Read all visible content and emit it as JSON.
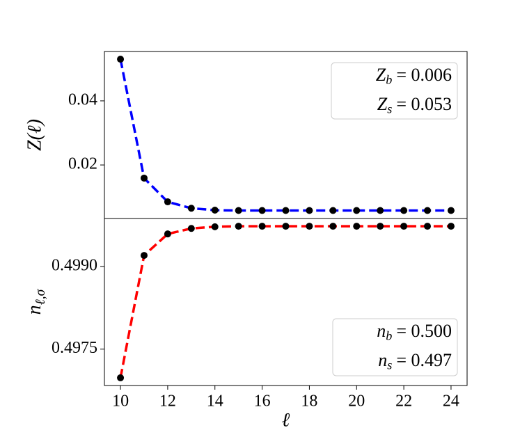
{
  "chart_data": [
    {
      "type": "line",
      "ylabel": "Z(ℓ)",
      "x": [
        10,
        11,
        12,
        13,
        14,
        15,
        16,
        17,
        18,
        19,
        20,
        21,
        22,
        23,
        24
      ],
      "series": [
        {
          "color": "#0000ff",
          "values": [
            0.053,
            0.0159,
            0.0085,
            0.0065,
            0.0059,
            0.0058,
            0.0058,
            0.0058,
            0.0058,
            0.0058,
            0.0058,
            0.0058,
            0.0058,
            0.0058,
            0.0058
          ]
        }
      ],
      "marker_color": "#000000",
      "xlim": [
        9.32,
        24.68
      ],
      "ylim": [
        0.0033,
        0.0554
      ],
      "yticks": [
        0.02,
        0.04
      ],
      "annotations": [
        {
          "symbol": "Z",
          "sub": "b",
          "rest": "= 0.006"
        },
        {
          "symbol": "Z",
          "sub": "s",
          "rest": "= 0.053"
        }
      ]
    },
    {
      "type": "line",
      "ylabel": {
        "symbol": "n",
        "sub": "ℓ,σ"
      },
      "xlabel": "ℓ",
      "x": [
        10,
        11,
        12,
        13,
        14,
        15,
        16,
        17,
        18,
        19,
        20,
        21,
        22,
        23,
        24
      ],
      "series": [
        {
          "color": "#ff0000",
          "values": [
            0.49698,
            0.4992,
            0.49959,
            0.49969,
            0.49972,
            0.49973,
            0.49973,
            0.49973,
            0.49973,
            0.49973,
            0.49973,
            0.49973,
            0.49973,
            0.49973,
            0.49973
          ]
        }
      ],
      "marker_color": "#000000",
      "xlim": [
        9.32,
        24.68
      ],
      "ylim": [
        0.49684,
        0.49987
      ],
      "xticks": [
        10,
        12,
        14,
        16,
        18,
        20,
        22,
        24
      ],
      "yticks": [
        {
          "value": 0.4975,
          "label": "0.4975"
        },
        {
          "value": 0.499,
          "label": "0.4990"
        }
      ],
      "annotations": [
        {
          "symbol": "n",
          "sub": "b",
          "rest": "= 0.500"
        },
        {
          "symbol": "n",
          "sub": "s",
          "rest": "= 0.497"
        }
      ]
    }
  ]
}
